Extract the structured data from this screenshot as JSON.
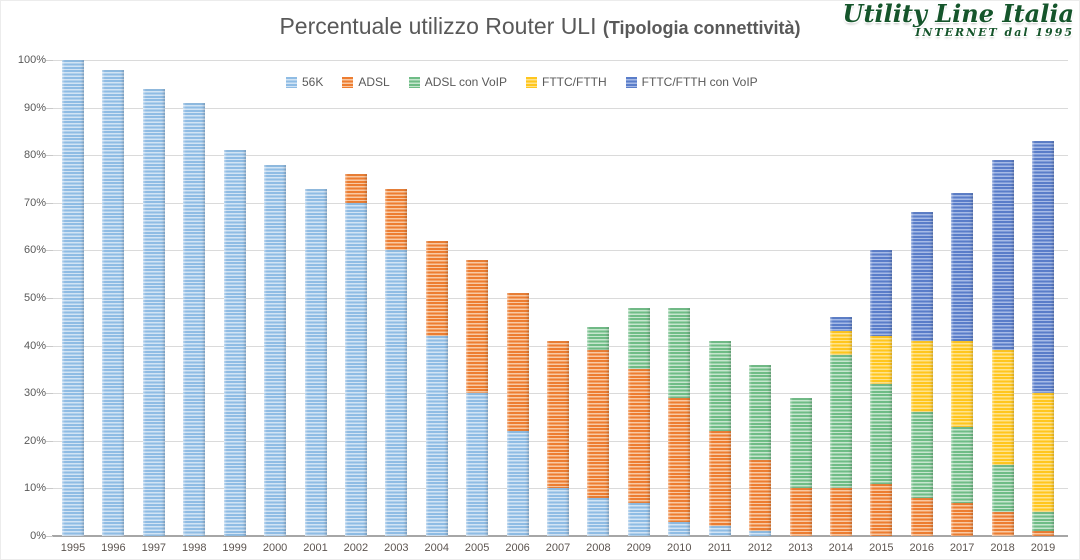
{
  "title": {
    "main": "Percentuale utilizzo Router ULI ",
    "sub": "(Tipologia connettività)"
  },
  "logo": {
    "line1": "Utility Line Italia",
    "line2": "INTERNET dal 1995"
  },
  "chart_data": {
    "type": "bar",
    "stacked": true,
    "title": "Percentuale utilizzo Router ULI (Tipologia connettività)",
    "xlabel": "",
    "ylabel": "",
    "ylim": [
      0,
      100
    ],
    "grid": true,
    "legend_position": "top-center",
    "gridline_color": "#dadada",
    "axis_color": "#a6a6a6",
    "text_color": "#595959",
    "yticks": [
      "0%",
      "10%",
      "20%",
      "30%",
      "40%",
      "50%",
      "60%",
      "70%",
      "80%",
      "90%",
      "100%"
    ],
    "categories": [
      "1995",
      "1996",
      "1997",
      "1998",
      "1999",
      "2000",
      "2001",
      "2002",
      "2003",
      "2004",
      "2005",
      "2006",
      "2007",
      "2008",
      "2009",
      "2010",
      "2011",
      "2012",
      "2013",
      "2014",
      "2015",
      "2016",
      "2017",
      "2018",
      "2019"
    ],
    "series": [
      {
        "name": "56K",
        "color": "#8FBCE4",
        "color_light": "#D2E4F5",
        "values": [
          100,
          98,
          94,
          91,
          81,
          78,
          73,
          70,
          60,
          42,
          30,
          22,
          10,
          8,
          7,
          3,
          2,
          1,
          0,
          0,
          0,
          0,
          0,
          0,
          0
        ]
      },
      {
        "name": "ADSL",
        "color": "#ED7D31",
        "color_light": "#F9C9A3",
        "values": [
          0,
          0,
          0,
          0,
          0,
          0,
          0,
          6,
          13,
          20,
          28,
          29,
          31,
          31,
          28,
          26,
          20,
          15,
          10,
          10,
          11,
          8,
          7,
          5,
          1
        ]
      },
      {
        "name": "ADSL con VoIP",
        "color": "#6FBC86",
        "color_light": "#C6E6CE",
        "values": [
          0,
          0,
          0,
          0,
          0,
          0,
          0,
          0,
          0,
          0,
          0,
          0,
          0,
          5,
          13,
          19,
          19,
          20,
          19,
          28,
          21,
          18,
          16,
          10,
          4
        ]
      },
      {
        "name": "FTTC/FTTH",
        "color": "#FFC61E",
        "color_light": "#FFE38C",
        "values": [
          0,
          0,
          0,
          0,
          0,
          0,
          0,
          0,
          0,
          0,
          0,
          0,
          0,
          0,
          0,
          0,
          0,
          0,
          0,
          5,
          10,
          15,
          18,
          24,
          25
        ]
      },
      {
        "name": "FTTC/FTTH con VoIP",
        "color": "#5A7DC9",
        "color_light": "#A6BAE6",
        "values": [
          0,
          0,
          0,
          0,
          0,
          0,
          0,
          0,
          0,
          0,
          0,
          0,
          0,
          0,
          0,
          0,
          0,
          0,
          0,
          3,
          18,
          27,
          31,
          40,
          53
        ]
      }
    ]
  }
}
